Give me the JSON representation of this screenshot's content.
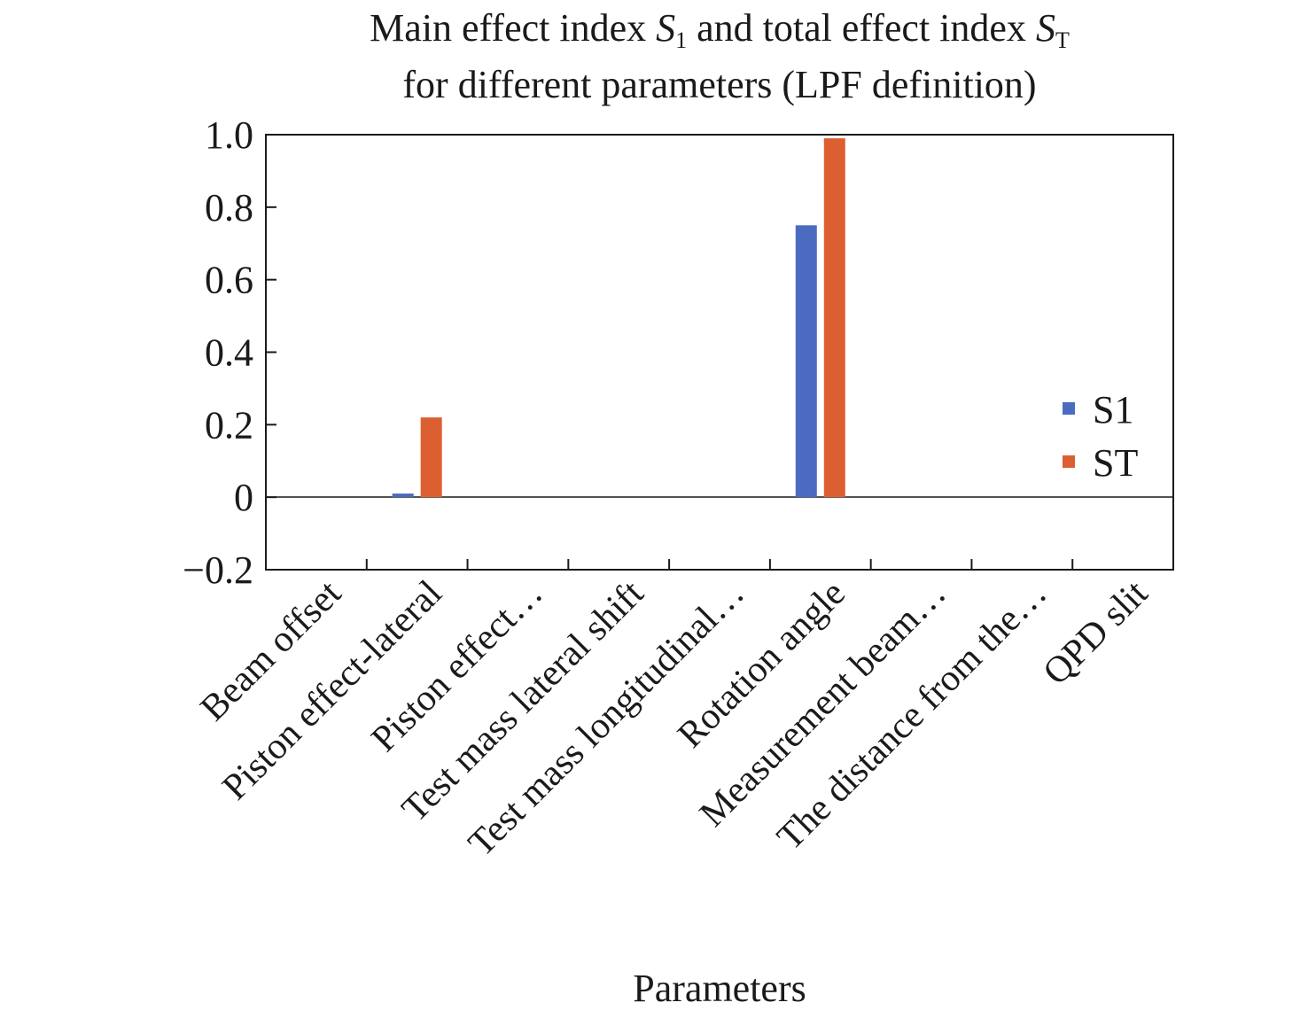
{
  "chart_data": {
    "type": "bar",
    "title": {
      "line1_a": "Main effect index ",
      "s1_sym": "S",
      "s1_sub": "1",
      "line1_b": " and total effect index ",
      "st_sym": "S",
      "st_sub": "T",
      "line2": "for different parameters (LPF definition)"
    },
    "xlabel": "Parameters",
    "ylabel": "",
    "ylim": [
      -0.2,
      1.0
    ],
    "yticks": [
      "1.0",
      "0.8",
      "0.6",
      "0.4",
      "0.2",
      "0",
      "−0.2"
    ],
    "categories": [
      "Beam offset",
      "Piston effect-lateral",
      "Piston effect…",
      "Test mass lateral shift",
      "Test mass longitudinal…",
      "Rotation angle",
      "Measurement beam…",
      "The distance from the…",
      "QPD slit"
    ],
    "series": [
      {
        "name": "S1",
        "color": "#4a6bc0",
        "values": [
          0,
          0.01,
          0,
          0,
          0,
          0.75,
          0,
          0,
          0
        ]
      },
      {
        "name": "ST",
        "color": "#dc5f32",
        "values": [
          0,
          0.22,
          0,
          0,
          0,
          0.99,
          0,
          0,
          0
        ]
      }
    ],
    "legend_position": "right",
    "grid": false
  }
}
